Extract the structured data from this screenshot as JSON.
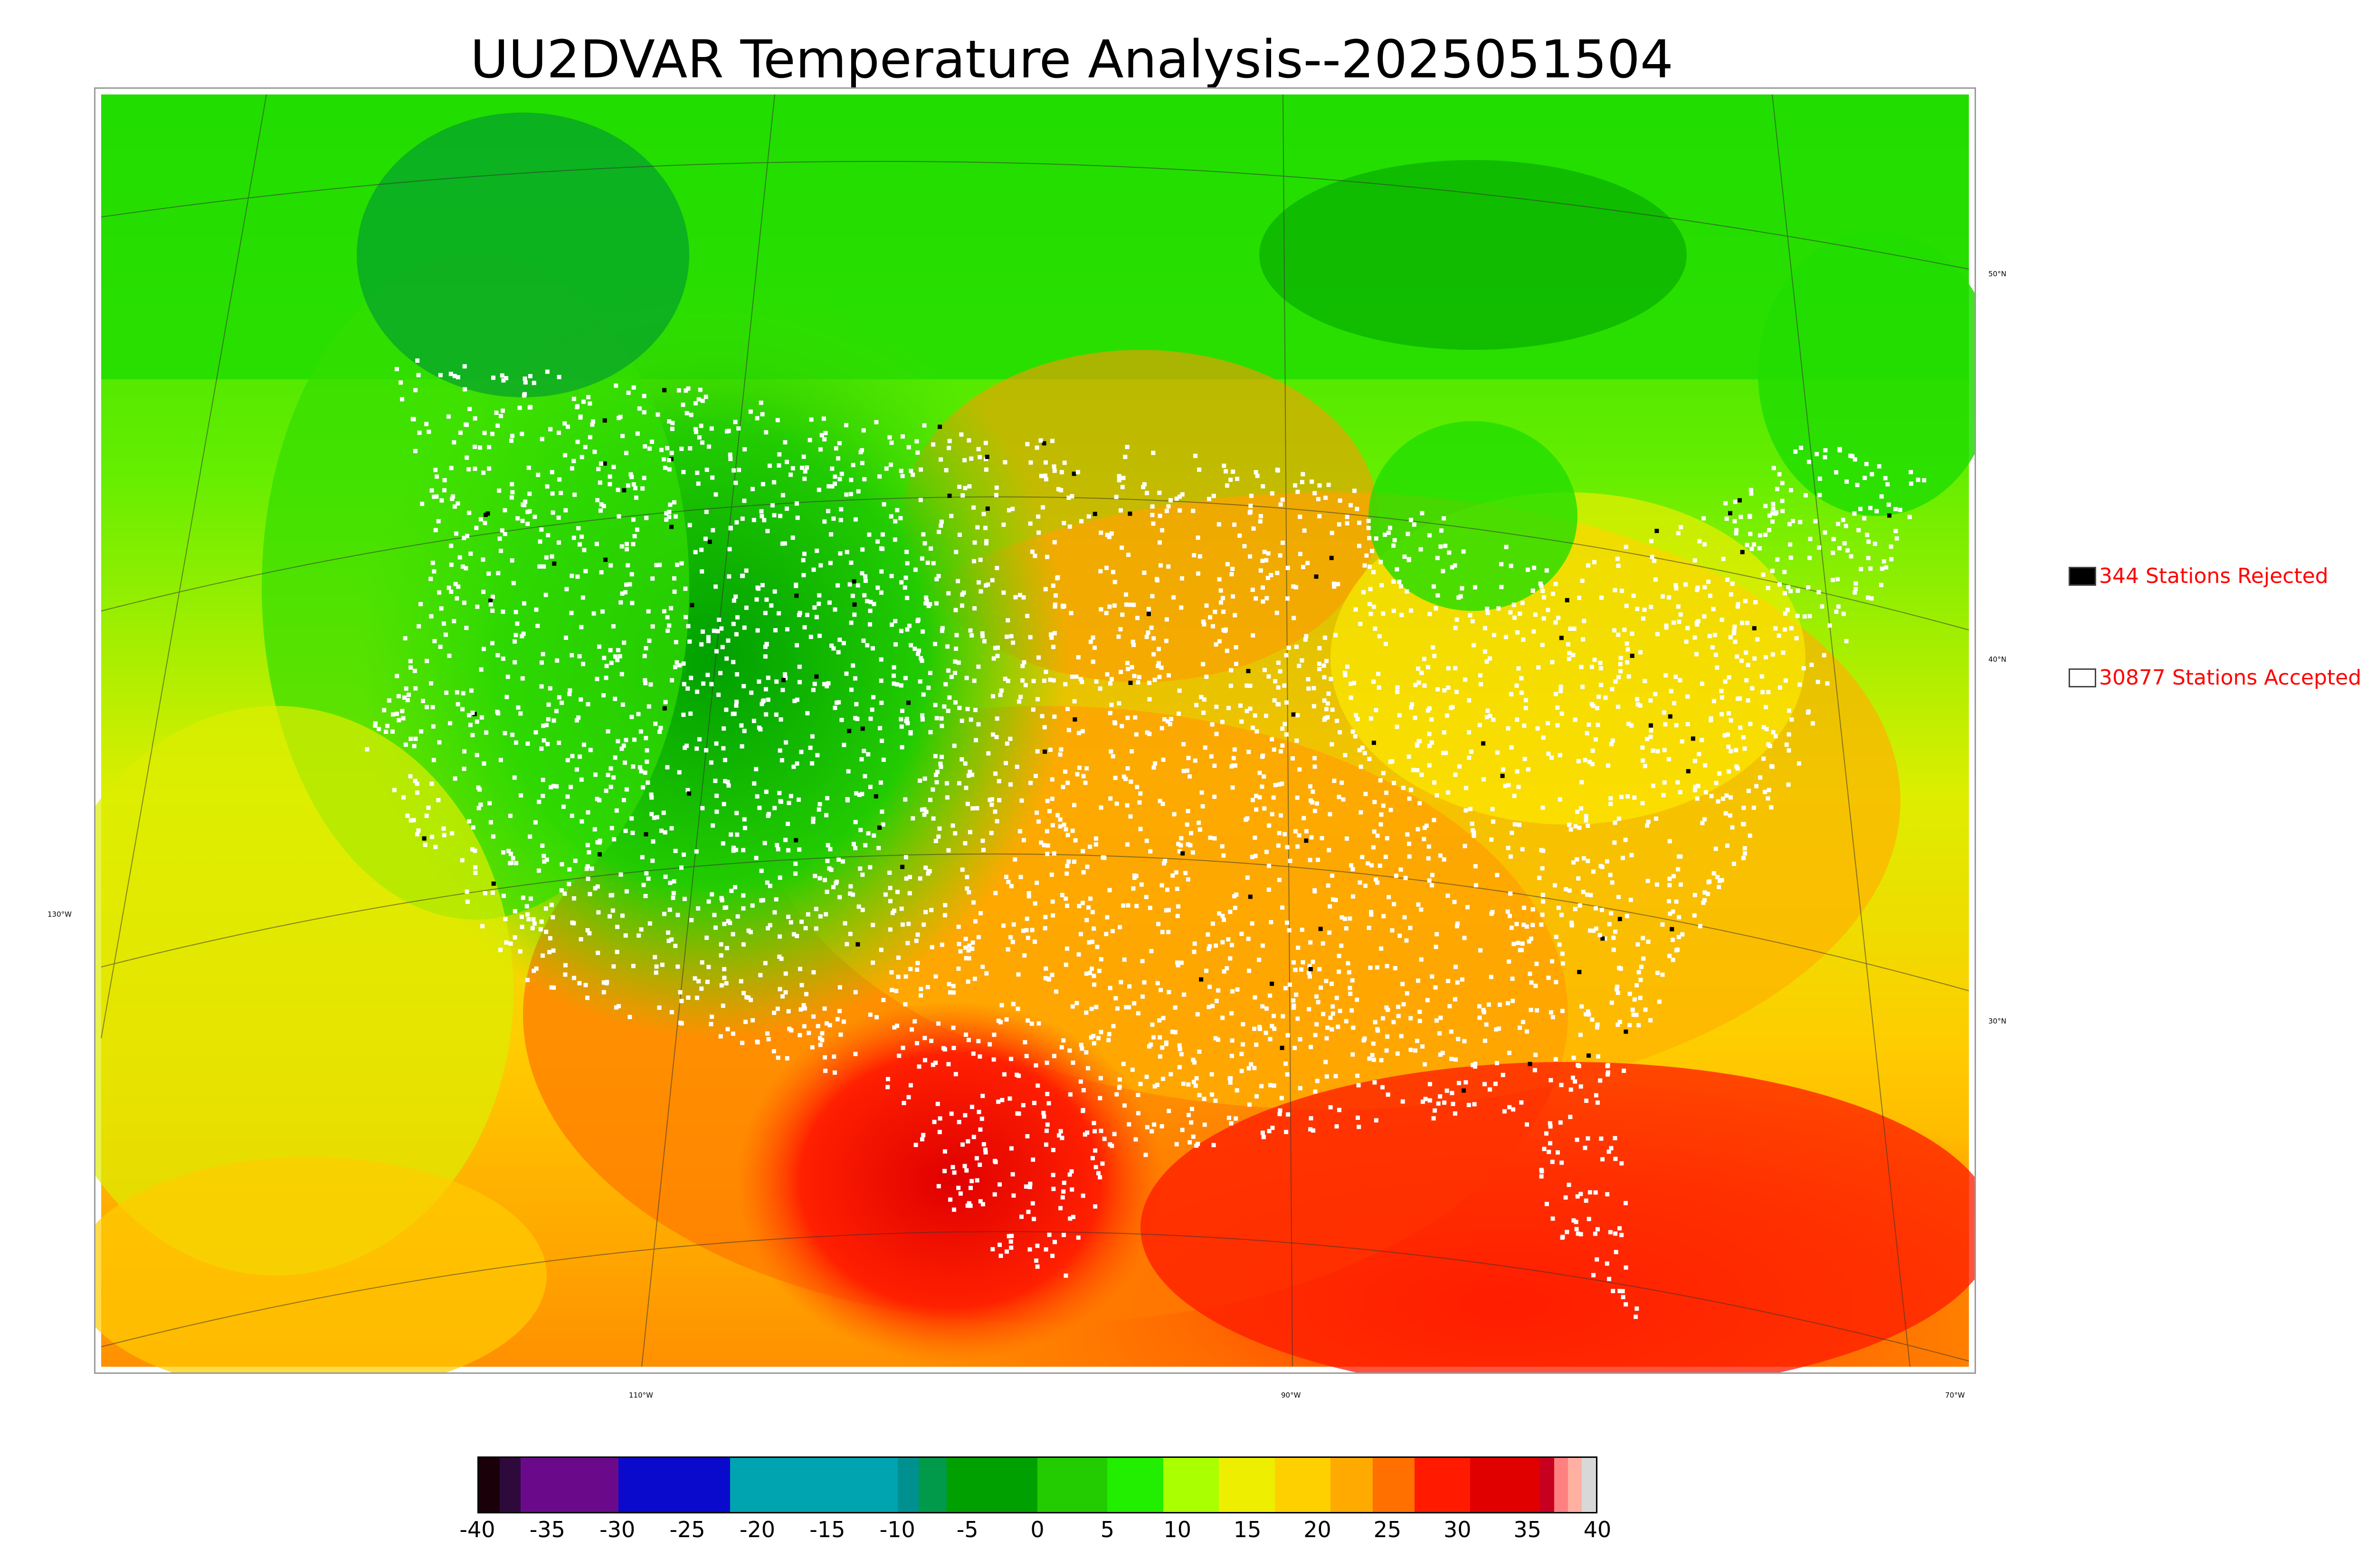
{
  "title": "UU2DVAR Temperature Analysis--2025051504",
  "legend": {
    "rejected": {
      "label": "344 Stations Rejected",
      "color": "#000000"
    },
    "accepted": {
      "label": "30877 Stations Accepted",
      "color": "#ffffff"
    }
  },
  "lat_labels": [
    "50°N",
    "40°N",
    "30°N"
  ],
  "lon_labels": [
    "130°W",
    "110°W",
    "90°W",
    "70°W"
  ],
  "colorbar": {
    "ticks": [
      "-40",
      "-35",
      "-30",
      "-25",
      "-20",
      "-15",
      "-10",
      "-5",
      "0",
      "5",
      "10",
      "15",
      "20",
      "25",
      "30",
      "35",
      "40"
    ],
    "segments": [
      {
        "from": -40,
        "to": -38.5,
        "color": "#1a0008"
      },
      {
        "from": -38.5,
        "to": -37,
        "color": "#2e0a3c"
      },
      {
        "from": -37,
        "to": -30,
        "color": "#6a0a8a"
      },
      {
        "from": -30,
        "to": -22,
        "color": "#0a0acc"
      },
      {
        "from": -22,
        "to": -10,
        "color": "#00a3b0"
      },
      {
        "from": -10,
        "to": -8.5,
        "color": "#009090"
      },
      {
        "from": -8.5,
        "to": -6.5,
        "color": "#009a4a"
      },
      {
        "from": -6.5,
        "to": 0,
        "color": "#00a000"
      },
      {
        "from": 0,
        "to": 5,
        "color": "#22cc00"
      },
      {
        "from": 5,
        "to": 9,
        "color": "#22ee00"
      },
      {
        "from": 9,
        "to": 13,
        "color": "#aaff00"
      },
      {
        "from": 13,
        "to": 17,
        "color": "#eeee00"
      },
      {
        "from": 17,
        "to": 21,
        "color": "#ffd000"
      },
      {
        "from": 21,
        "to": 24,
        "color": "#ffaa00"
      },
      {
        "from": 24,
        "to": 27,
        "color": "#ff7000"
      },
      {
        "from": 27,
        "to": 31,
        "color": "#ff1a00"
      },
      {
        "from": 31,
        "to": 36,
        "color": "#e00000"
      },
      {
        "from": 36,
        "to": 37,
        "color": "#c80020"
      },
      {
        "from": 37,
        "to": 38,
        "color": "#ff8080"
      },
      {
        "from": 38,
        "to": 39,
        "color": "#ffb0a0"
      },
      {
        "from": 39,
        "to": 40,
        "color": "#d8d8d8"
      }
    ]
  }
}
